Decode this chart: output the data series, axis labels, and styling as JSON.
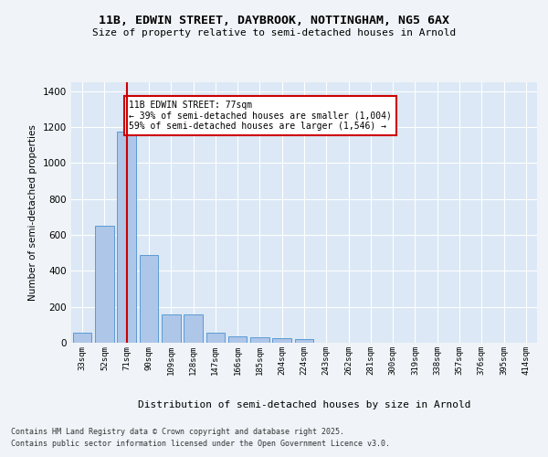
{
  "title_line1": "11B, EDWIN STREET, DAYBROOK, NOTTINGHAM, NG5 6AX",
  "title_line2": "Size of property relative to semi-detached houses in Arnold",
  "xlabel": "Distribution of semi-detached houses by size in Arnold",
  "ylabel": "Number of semi-detached properties",
  "categories": [
    "33sqm",
    "52sqm",
    "71sqm",
    "90sqm",
    "109sqm",
    "128sqm",
    "147sqm",
    "166sqm",
    "185sqm",
    "204sqm",
    "224sqm",
    "243sqm",
    "262sqm",
    "281sqm",
    "300sqm",
    "319sqm",
    "338sqm",
    "357sqm",
    "376sqm",
    "395sqm",
    "414sqm"
  ],
  "values": [
    55,
    650,
    1175,
    490,
    160,
    160,
    55,
    35,
    30,
    25,
    20,
    0,
    0,
    0,
    0,
    0,
    0,
    0,
    0,
    0,
    0
  ],
  "bar_color": "#aec6e8",
  "bar_edge_color": "#5b9bd5",
  "property_bar_index": 2,
  "vline_color": "#cc0000",
  "annotation_text": "11B EDWIN STREET: 77sqm\n← 39% of semi-detached houses are smaller (1,004)\n59% of semi-detached houses are larger (1,546) →",
  "annotation_box_color": "#cc0000",
  "ylim": [
    0,
    1450
  ],
  "yticks": [
    0,
    200,
    400,
    600,
    800,
    1000,
    1200,
    1400
  ],
  "fig_bg_color": "#f0f4f8",
  "plot_bg_color": "#dce8f5",
  "footer_line1": "Contains HM Land Registry data © Crown copyright and database right 2025.",
  "footer_line2": "Contains public sector information licensed under the Open Government Licence v3.0."
}
